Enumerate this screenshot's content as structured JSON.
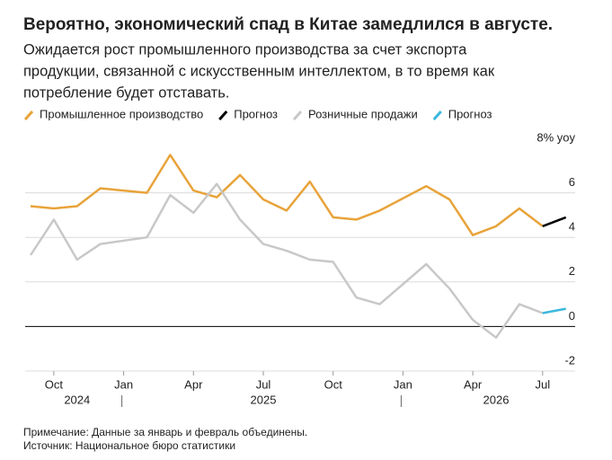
{
  "chart_data": {
    "type": "line",
    "title": "Вероятно, экономический спад в Китае замедлился в августе.",
    "subtitle": [
      "Ожидается рост промышленного производства за счет экспорта",
      "продукции, связанной с искусственным интеллектом, в то время как",
      "потребление будет отставать."
    ],
    "x": [
      "2024-09",
      "2024-10",
      "2024-11",
      "2024-12",
      "2025-02",
      "2025-03",
      "2025-04",
      "2025-05",
      "2025-06",
      "2025-07",
      "2025-08",
      "2025-09",
      "2025-10",
      "2025-11",
      "2025-12",
      "2026-02",
      "2026-03",
      "2026-04",
      "2026-05",
      "2026-06",
      "2026-07",
      "2026-08"
    ],
    "series": [
      {
        "name": "Промышленное производство",
        "color": "#e8a33a",
        "values": [
          5.4,
          5.3,
          5.4,
          6.2,
          6.0,
          7.7,
          6.1,
          5.8,
          6.8,
          5.7,
          5.2,
          6.5,
          4.9,
          4.8,
          5.2,
          6.3,
          5.7,
          4.1,
          4.5,
          5.3,
          4.5,
          null
        ]
      },
      {
        "name": "Прогноз",
        "color": "#000000",
        "values": [
          null,
          null,
          null,
          null,
          null,
          null,
          null,
          null,
          null,
          null,
          null,
          null,
          null,
          null,
          null,
          null,
          null,
          null,
          null,
          null,
          4.5,
          4.9
        ]
      },
      {
        "name": "Розничные продажи",
        "color": "#c8c8c8",
        "values": [
          3.2,
          4.8,
          3.0,
          3.7,
          4.0,
          5.9,
          5.1,
          6.4,
          4.8,
          3.7,
          3.4,
          3.0,
          2.9,
          1.3,
          1.0,
          2.8,
          1.7,
          0.3,
          -0.5,
          1.0,
          0.6,
          null
        ]
      },
      {
        "name": "Прогноз",
        "color": "#3bb8dd",
        "values": [
          null,
          null,
          null,
          null,
          null,
          null,
          null,
          null,
          null,
          null,
          null,
          null,
          null,
          null,
          null,
          null,
          null,
          null,
          null,
          null,
          0.6,
          0.8
        ]
      }
    ],
    "ylim": [
      -2,
      8
    ],
    "yticks": [
      -2,
      0,
      2,
      4,
      6,
      {
        "value": 8,
        "label": "8% yoy"
      }
    ],
    "xticks": [
      {
        "value": "2024-10",
        "label": "Oct"
      },
      {
        "value": "2025-01",
        "label": "Jan"
      },
      {
        "value": "2025-04",
        "label": "Apr"
      },
      {
        "value": "2025-07",
        "label": "Jul"
      },
      {
        "value": "2025-10",
        "label": "Oct"
      },
      {
        "value": "2026-01",
        "label": "Jan"
      },
      {
        "value": "2026-04",
        "label": "Apr"
      },
      {
        "value": "2026-07",
        "label": "Jul"
      }
    ],
    "year_labels": [
      {
        "value": "2024-11",
        "label": "2024"
      },
      {
        "value": "2025-07",
        "label": "2025"
      },
      {
        "value": "2026-05",
        "label": "2026"
      }
    ],
    "notes": [
      "Примечание: Данные за январь и февраль объединены.",
      "Источник: Национальное бюро статистики"
    ]
  }
}
